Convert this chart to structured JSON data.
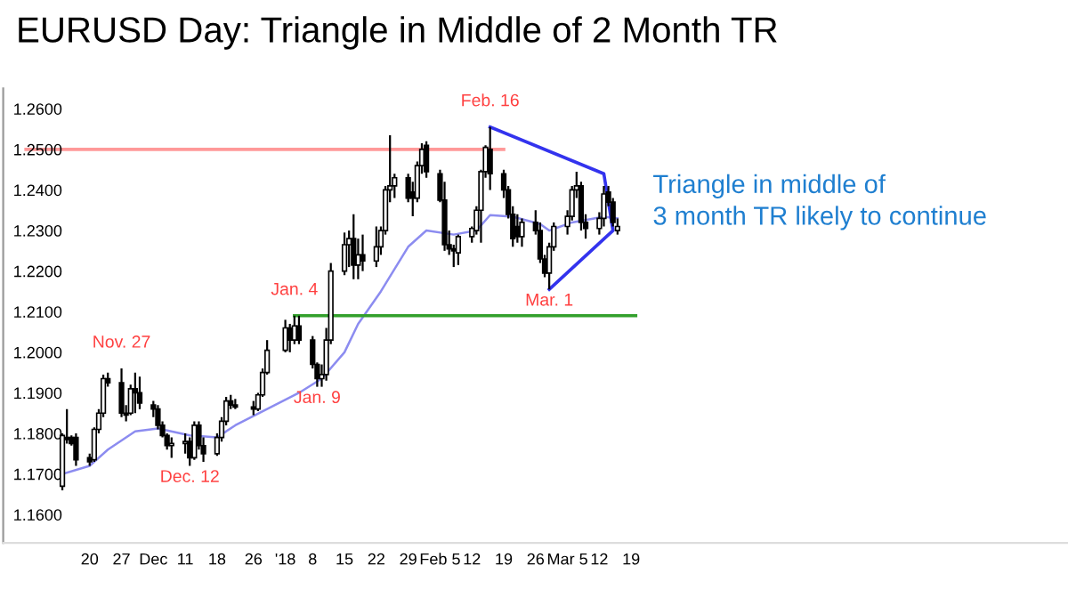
{
  "chart_data": {
    "type": "candlestick",
    "title": "EURUSD Day: Triangle in Middle of 2 Month TR",
    "x": [
      "2017-11-14",
      "2017-11-15",
      "2017-11-16",
      "2017-11-17",
      "2017-11-20",
      "2017-11-21",
      "2017-11-22",
      "2017-11-23",
      "2017-11-24",
      "2017-11-27",
      "2017-11-28",
      "2017-11-29",
      "2017-11-30",
      "2017-12-01",
      "2017-12-04",
      "2017-12-05",
      "2017-12-06",
      "2017-12-07",
      "2017-12-08",
      "2017-12-11",
      "2017-12-12",
      "2017-12-13",
      "2017-12-14",
      "2017-12-15",
      "2017-12-18",
      "2017-12-19",
      "2017-12-20",
      "2017-12-21",
      "2017-12-22",
      "2017-12-26",
      "2017-12-27",
      "2017-12-28",
      "2017-12-29",
      "2018-01-02",
      "2018-01-03",
      "2018-01-04",
      "2018-01-05",
      "2018-01-08",
      "2018-01-09",
      "2018-01-10",
      "2018-01-11",
      "2018-01-12",
      "2018-01-15",
      "2018-01-16",
      "2018-01-17",
      "2018-01-18",
      "2018-01-19",
      "2018-01-22",
      "2018-01-23",
      "2018-01-24",
      "2018-01-25",
      "2018-01-26",
      "2018-01-29",
      "2018-01-30",
      "2018-01-31",
      "2018-02-01",
      "2018-02-02",
      "2018-02-05",
      "2018-02-06",
      "2018-02-07",
      "2018-02-08",
      "2018-02-09",
      "2018-02-12",
      "2018-02-13",
      "2018-02-14",
      "2018-02-15",
      "2018-02-16",
      "2018-02-19",
      "2018-02-20",
      "2018-02-21",
      "2018-02-22",
      "2018-02-23",
      "2018-02-26",
      "2018-02-27",
      "2018-02-28",
      "2018-03-01",
      "2018-03-02",
      "2018-03-05",
      "2018-03-06",
      "2018-03-07",
      "2018-03-08",
      "2018-03-09",
      "2018-03-12",
      "2018-03-13",
      "2018-03-14",
      "2018-03-15",
      "2018-03-16"
    ],
    "ohlc": [
      [
        1.167,
        1.18,
        1.166,
        1.1795
      ],
      [
        1.179,
        1.186,
        1.1775,
        1.1785
      ],
      [
        1.179,
        1.1795,
        1.177,
        1.1775
      ],
      [
        1.179,
        1.18,
        1.172,
        1.1735
      ],
      [
        1.174,
        1.175,
        1.172,
        1.173
      ],
      [
        1.1735,
        1.1815,
        1.173,
        1.181
      ],
      [
        1.181,
        1.186,
        1.18,
        1.185
      ],
      [
        1.185,
        1.1945,
        1.184,
        1.1935
      ],
      [
        1.1935,
        1.195,
        1.1915,
        1.1925
      ],
      [
        1.1925,
        1.196,
        1.184,
        1.185
      ],
      [
        1.185,
        1.187,
        1.183,
        1.1845
      ],
      [
        1.185,
        1.192,
        1.1845,
        1.191
      ],
      [
        1.191,
        1.195,
        1.185,
        1.19
      ],
      [
        1.19,
        1.194,
        1.186,
        1.1875
      ],
      [
        1.187,
        1.188,
        1.184,
        1.186
      ],
      [
        1.186,
        1.187,
        1.181,
        1.182
      ],
      [
        1.182,
        1.183,
        1.179,
        1.1795
      ],
      [
        1.1795,
        1.18,
        1.176,
        1.177
      ],
      [
        1.177,
        1.179,
        1.174,
        1.1775
      ],
      [
        1.1775,
        1.18,
        1.175,
        1.178
      ],
      [
        1.178,
        1.179,
        1.172,
        1.174
      ],
      [
        1.174,
        1.183,
        1.1735,
        1.182
      ],
      [
        1.182,
        1.183,
        1.176,
        1.177
      ],
      [
        1.177,
        1.179,
        1.173,
        1.175
      ],
      [
        1.175,
        1.18,
        1.1745,
        1.179
      ],
      [
        1.179,
        1.184,
        1.178,
        1.183
      ],
      [
        1.183,
        1.189,
        1.182,
        1.188
      ],
      [
        1.188,
        1.1895,
        1.186,
        1.187
      ],
      [
        1.187,
        1.1885,
        1.186,
        1.1865
      ],
      [
        1.1865,
        1.188,
        1.1845,
        1.186
      ],
      [
        1.186,
        1.19,
        1.1855,
        1.1895
      ],
      [
        1.1895,
        1.196,
        1.189,
        1.195
      ],
      [
        1.195,
        1.203,
        1.1945,
        1.2005
      ],
      [
        1.2005,
        1.208,
        1.2,
        1.206
      ],
      [
        1.206,
        1.207,
        1.2,
        1.203
      ],
      [
        1.203,
        1.209,
        1.202,
        1.2065
      ],
      [
        1.2065,
        1.209,
        1.202,
        1.203
      ],
      [
        1.203,
        1.204,
        1.196,
        1.197
      ],
      [
        1.197,
        1.1975,
        1.1915,
        1.1935
      ],
      [
        1.1935,
        1.197,
        1.1915,
        1.1945
      ],
      [
        1.1945,
        1.206,
        1.193,
        1.203
      ],
      [
        1.203,
        1.222,
        1.202,
        1.22
      ],
      [
        1.22,
        1.2295,
        1.219,
        1.2265
      ],
      [
        1.2265,
        1.23,
        1.221,
        1.228
      ],
      [
        1.228,
        1.234,
        1.218,
        1.2215
      ],
      [
        1.2215,
        1.228,
        1.218,
        1.224
      ],
      [
        1.224,
        1.229,
        1.22,
        1.2225
      ],
      [
        1.2225,
        1.231,
        1.221,
        1.226
      ],
      [
        1.226,
        1.231,
        1.224,
        1.23
      ],
      [
        1.23,
        1.241,
        1.229,
        1.24
      ],
      [
        1.24,
        1.2535,
        1.237,
        1.241
      ],
      [
        1.241,
        1.244,
        1.238,
        1.243
      ],
      [
        1.243,
        1.244,
        1.237,
        1.238
      ],
      [
        1.2395,
        1.242,
        1.2335,
        1.238
      ],
      [
        1.238,
        1.247,
        1.237,
        1.246
      ],
      [
        1.246,
        1.2515,
        1.244,
        1.25
      ],
      [
        1.251,
        1.252,
        1.243,
        1.2445
      ],
      [
        1.244,
        1.245,
        1.237,
        1.2375
      ],
      [
        1.2375,
        1.242,
        1.225,
        1.2265
      ],
      [
        1.2265,
        1.23,
        1.224,
        1.2255
      ],
      [
        1.2255,
        1.2265,
        1.221,
        1.225
      ],
      [
        1.2245,
        1.229,
        1.2215,
        1.2285
      ],
      [
        1.2285,
        1.231,
        1.227,
        1.2305
      ],
      [
        1.23,
        1.236,
        1.229,
        1.235
      ],
      [
        1.235,
        1.245,
        1.227,
        1.2445
      ],
      [
        1.2445,
        1.251,
        1.243,
        1.2505
      ],
      [
        1.25,
        1.2555,
        1.24,
        1.244
      ],
      [
        1.244,
        1.245,
        1.238,
        1.24
      ],
      [
        1.24,
        1.241,
        1.233,
        1.234
      ],
      [
        1.234,
        1.236,
        1.226,
        1.228
      ],
      [
        1.231,
        1.234,
        1.227,
        1.2285
      ],
      [
        1.2285,
        1.233,
        1.226,
        1.232
      ],
      [
        1.232,
        1.235,
        1.229,
        1.23
      ],
      [
        1.23,
        1.232,
        1.222,
        1.223
      ],
      [
        1.223,
        1.224,
        1.2185,
        1.2195
      ],
      [
        1.2195,
        1.227,
        1.2155,
        1.226
      ],
      [
        1.226,
        1.232,
        1.225,
        1.231
      ],
      [
        1.231,
        1.235,
        1.229,
        1.2335
      ],
      [
        1.2335,
        1.241,
        1.2325,
        1.24
      ],
      [
        1.24,
        1.2445,
        1.238,
        1.241
      ],
      [
        1.241,
        1.242,
        1.23,
        1.232
      ],
      [
        1.232,
        1.234,
        1.228,
        1.2305
      ],
      [
        1.2305,
        1.2345,
        1.229,
        1.233
      ],
      [
        1.233,
        1.241,
        1.231,
        1.239
      ],
      [
        1.2395,
        1.241,
        1.236,
        1.237
      ],
      [
        1.237,
        1.238,
        1.231,
        1.232
      ],
      [
        1.23,
        1.233,
        1.229,
        1.231
      ]
    ],
    "series": [
      {
        "type": "line",
        "color": "#8c8cf0",
        "x": [
          "2017-11-14",
          "2017-11-20",
          "2017-11-24",
          "2017-11-30",
          "2017-12-05",
          "2017-12-12",
          "2017-12-18",
          "2017-12-22",
          "2017-12-29",
          "2018-01-05",
          "2018-01-10",
          "2018-01-15",
          "2018-01-18",
          "2018-01-23",
          "2018-01-29",
          "2018-02-02",
          "2018-02-08",
          "2018-02-13",
          "2018-02-16",
          "2018-02-21",
          "2018-02-27",
          "2018-03-01",
          "2018-03-06",
          "2018-03-13",
          "2018-03-16"
        ],
        "values": [
          1.17,
          1.172,
          1.176,
          1.1805,
          1.1812,
          1.1795,
          1.179,
          1.182,
          1.186,
          1.19,
          1.1935,
          1.2,
          1.207,
          1.215,
          1.226,
          1.23,
          1.229,
          1.23,
          1.2338,
          1.2334,
          1.2316,
          1.23,
          1.232,
          1.2334,
          1.233
        ]
      },
      {
        "type": "line",
        "color": "#ff9999",
        "x": [
          "2017-11-06",
          "2018-02-19"
        ],
        "values": [
          1.25,
          1.25
        ]
      },
      {
        "type": "line",
        "color": "#33a02c",
        "x": [
          "2018-01-04",
          "2018-03-20"
        ],
        "values": [
          1.209,
          1.209
        ]
      },
      {
        "type": "line",
        "color": "#3333ee",
        "x": [
          "2018-02-16",
          "2018-03-13",
          "2018-03-15",
          "2018-03-01"
        ],
        "values": [
          1.2555,
          1.244,
          1.23,
          1.2155
        ]
      }
    ],
    "annotations": [
      {
        "text": "Nov. 27",
        "x": "2017-11-27",
        "y": 1.196
      },
      {
        "text": "Dec. 12",
        "x": "2017-12-12",
        "y": 1.172
      },
      {
        "text": "Jan. 4",
        "x": "2018-01-04",
        "y": 1.209
      },
      {
        "text": "Jan. 9",
        "x": "2018-01-09",
        "y": 1.1915
      },
      {
        "text": "Feb. 16",
        "x": "2018-02-16",
        "y": 1.2555
      },
      {
        "text": "Mar. 1",
        "x": "2018-03-01",
        "y": 1.2155
      },
      "Triangle in middle of\n3 month TR likely to continue"
    ],
    "xlim": [
      "2017-11-01",
      "2018-06-23"
    ],
    "xticks": [
      {
        "value": "2017-11-20",
        "label": "20"
      },
      {
        "value": "2017-11-27",
        "label": "27"
      },
      {
        "value": "2017-12-04",
        "label": "Dec"
      },
      {
        "value": "2017-12-11",
        "label": "11"
      },
      {
        "value": "2017-12-18",
        "label": "18"
      },
      {
        "value": "2017-12-26",
        "label": "26"
      },
      {
        "value": "2018-01-02",
        "label": "'18"
      },
      {
        "value": "2018-01-08",
        "label": "8"
      },
      {
        "value": "2018-01-15",
        "label": "15"
      },
      {
        "value": "2018-01-22",
        "label": "22"
      },
      {
        "value": "2018-01-29",
        "label": "29"
      },
      {
        "value": "2018-02-05",
        "label": "Feb 5"
      },
      {
        "value": "2018-02-12",
        "label": "12"
      },
      {
        "value": "2018-02-19",
        "label": "19"
      },
      {
        "value": "2018-02-26",
        "label": "26"
      },
      {
        "value": "2018-03-05",
        "label": "Mar 5"
      },
      {
        "value": "2018-03-12",
        "label": "12"
      },
      {
        "value": "2018-03-19",
        "label": "19"
      }
    ],
    "ylim": [
      1.153,
      1.265
    ],
    "yticks": [
      {
        "value": 1.16,
        "label": "1.1600"
      },
      {
        "value": 1.17,
        "label": "1.1700"
      },
      {
        "value": 1.18,
        "label": "1.1800"
      },
      {
        "value": 1.19,
        "label": "1.1900"
      },
      {
        "value": 1.2,
        "label": "1.2000"
      },
      {
        "value": 1.21,
        "label": "1.2100"
      },
      {
        "value": 1.22,
        "label": "1.2200"
      },
      {
        "value": 1.23,
        "label": "1.2300"
      },
      {
        "value": 1.24,
        "label": "1.2400"
      },
      {
        "value": 1.25,
        "label": "1.2500"
      },
      {
        "value": 1.26,
        "label": "1.2600"
      }
    ],
    "grid": false,
    "legend": false
  }
}
